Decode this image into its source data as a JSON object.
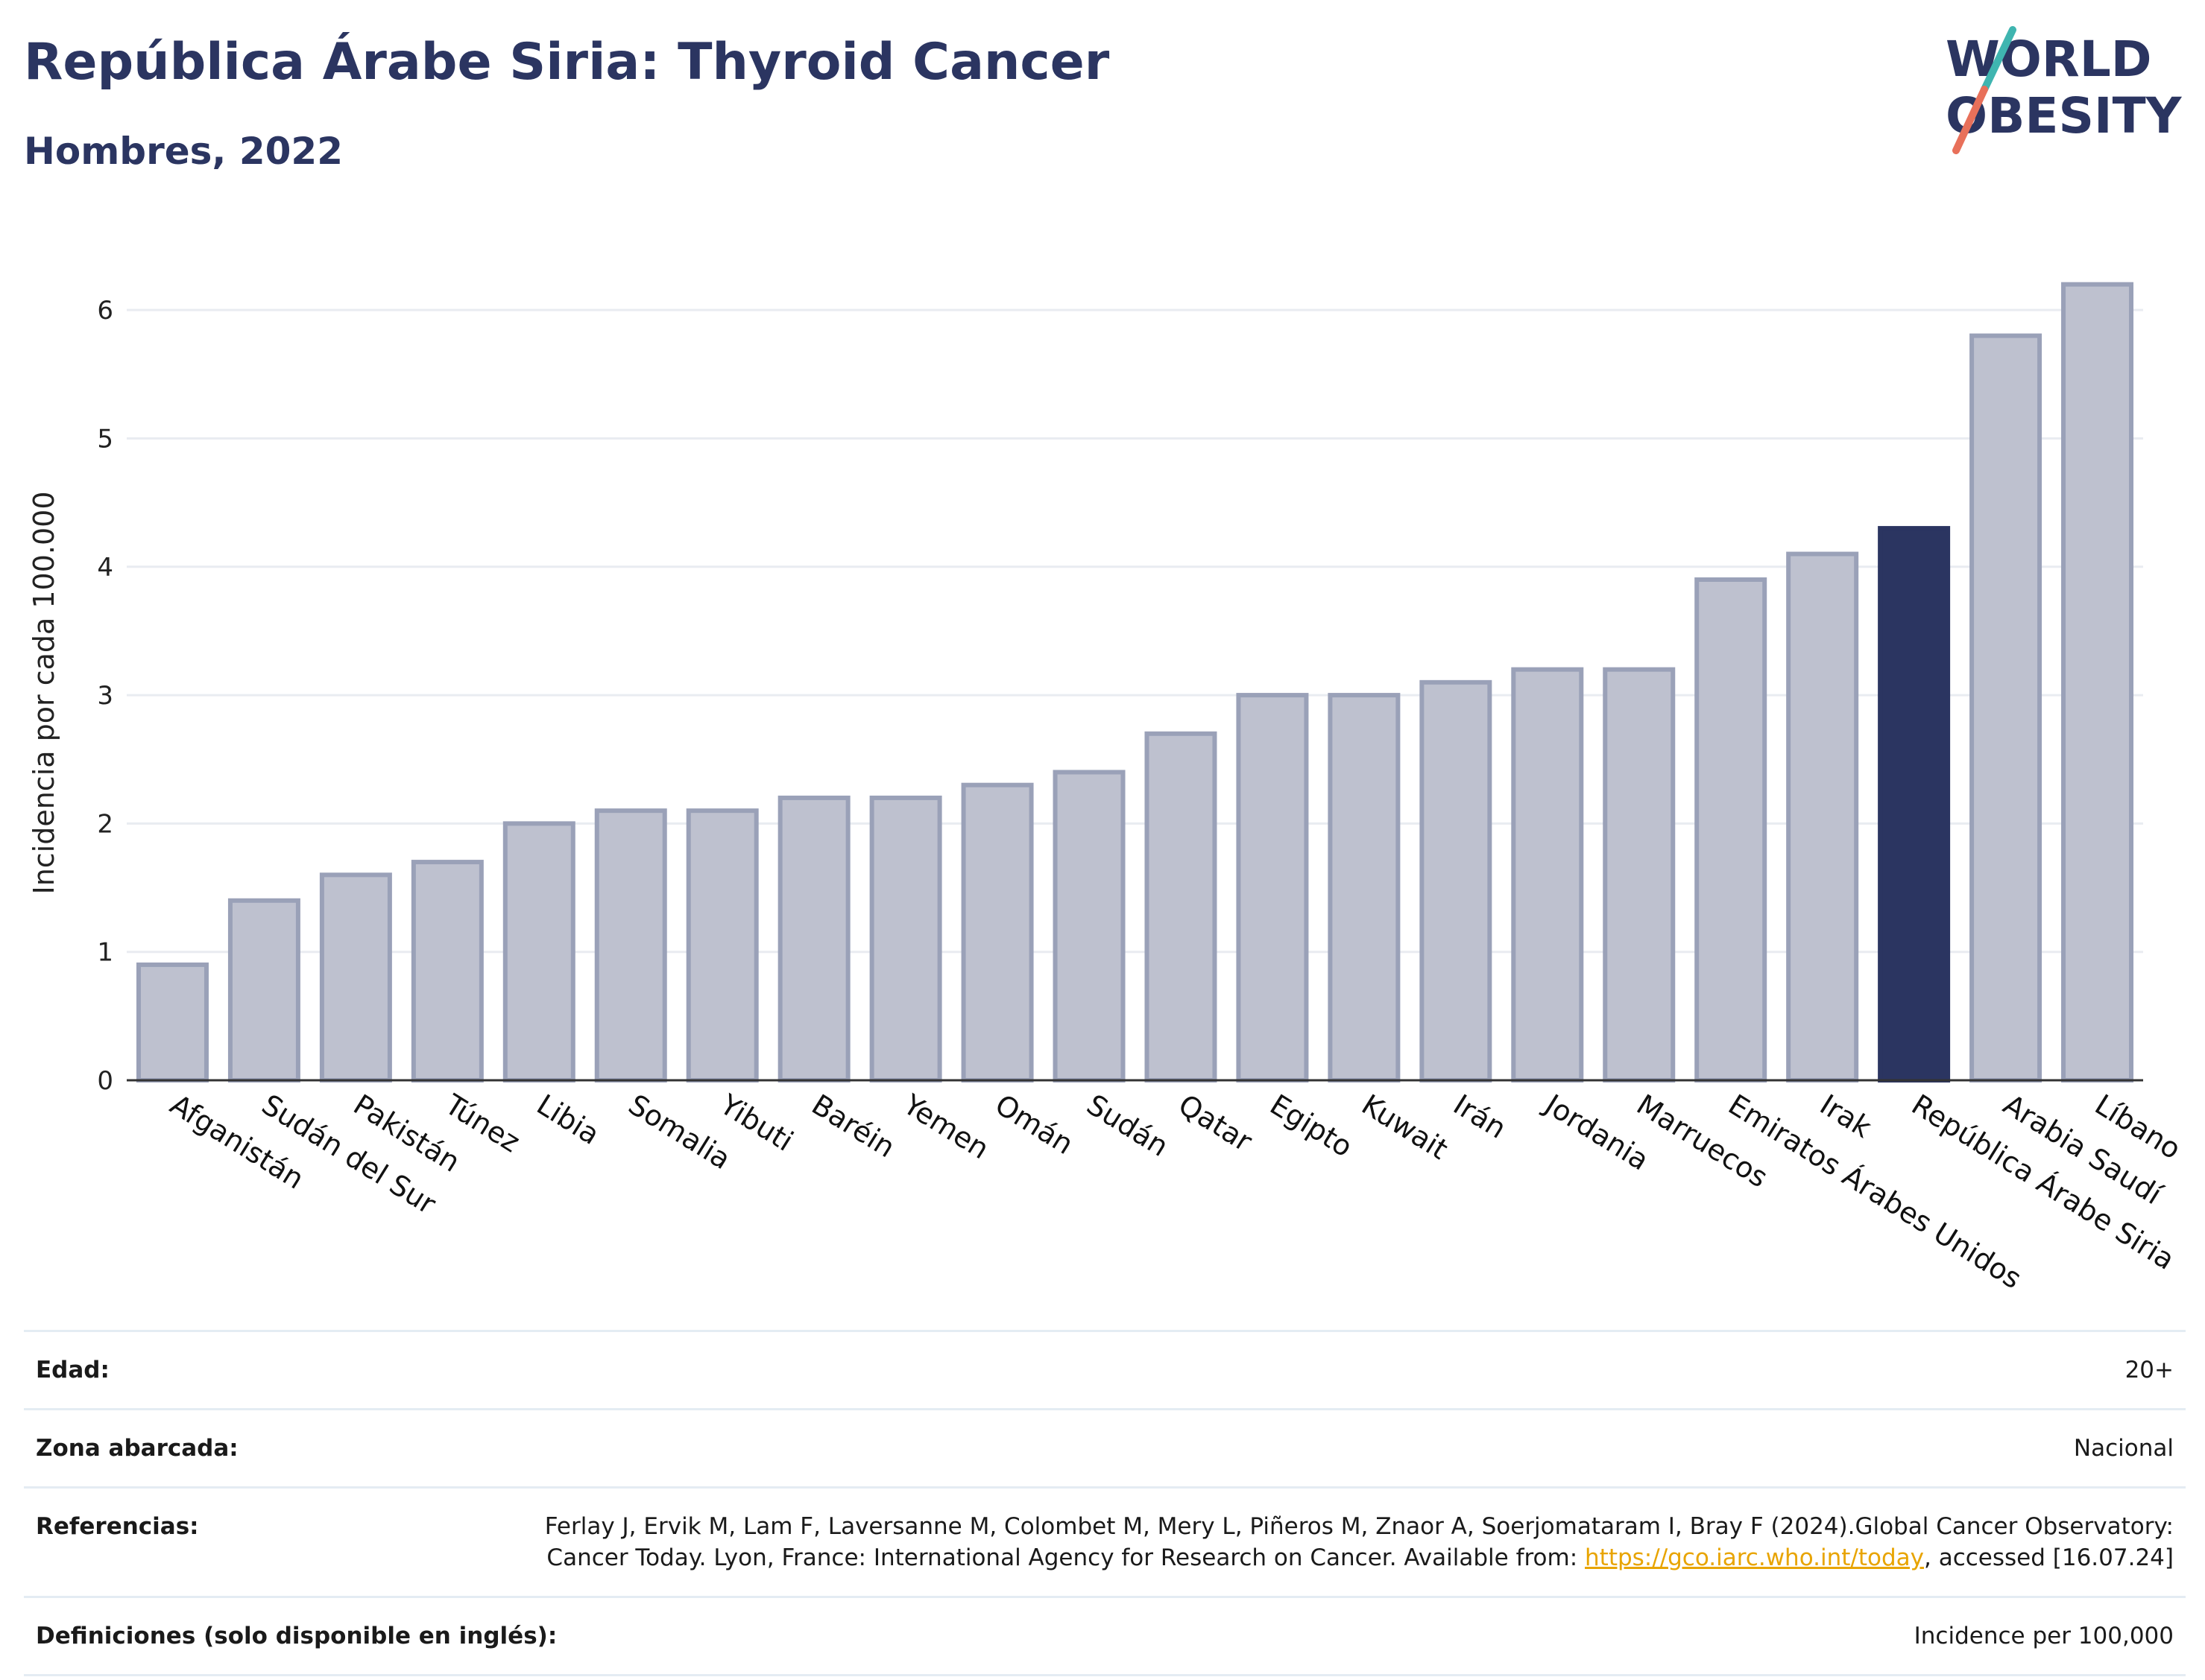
{
  "header": {
    "title": "República Árabe Siria: Thyroid Cancer",
    "subtitle": "Hombres, 2022"
  },
  "logo": {
    "line1": "WORLD",
    "line2": "OBESITY"
  },
  "colors": {
    "highlight": "#2b3561",
    "bar": "#bec1cf",
    "bar_edge": "#9aa1b8",
    "grid": "#e9ecf1"
  },
  "chart_data": {
    "type": "bar",
    "ylabel": "Incidencia por cada 100.000",
    "ylim": [
      0,
      6.5
    ],
    "yticks": [
      0,
      1,
      2,
      3,
      4,
      5,
      6
    ],
    "grid": true,
    "highlight": "República Árabe Siria",
    "categories": [
      "Afganistán",
      "Sudán del Sur",
      "Pakistán",
      "Túnez",
      "Libia",
      "Somalia",
      "Yibuti",
      "Baréin",
      "Yemen",
      "Omán",
      "Sudán",
      "Qatar",
      "Egipto",
      "Kuwait",
      "Irán",
      "Jordania",
      "Marruecos",
      "Emiratos Árabes Unidos",
      "Irak",
      "República Árabe Siria",
      "Arabia Saudí",
      "Líbano"
    ],
    "values": [
      0.9,
      1.4,
      1.6,
      1.7,
      2.0,
      2.1,
      2.1,
      2.2,
      2.2,
      2.3,
      2.4,
      2.7,
      3.0,
      3.0,
      3.1,
      3.2,
      3.2,
      3.9,
      4.1,
      4.3,
      5.8,
      6.2
    ]
  },
  "meta": {
    "age_label": "Edad:",
    "age_value": "20+",
    "zone_label": "Zona abarcada:",
    "zone_value": "Nacional",
    "ref_label": "Referencias:",
    "ref_text_1": "Ferlay J, Ervik M, Lam F, Laversanne M, Colombet M, Mery L, Piñeros M, Znaor A, Soerjomataram I, Bray F (2024).Global Cancer Observatory: Cancer Today. Lyon, France: International Agency for Research on Cancer. Available from: ",
    "ref_link": "https://gco.iarc.who.int/today",
    "ref_text_2": ", accessed [16.07.24]",
    "def_label": "Definiciones (solo disponible en inglés):",
    "def_value": "Incidence per 100,000"
  }
}
